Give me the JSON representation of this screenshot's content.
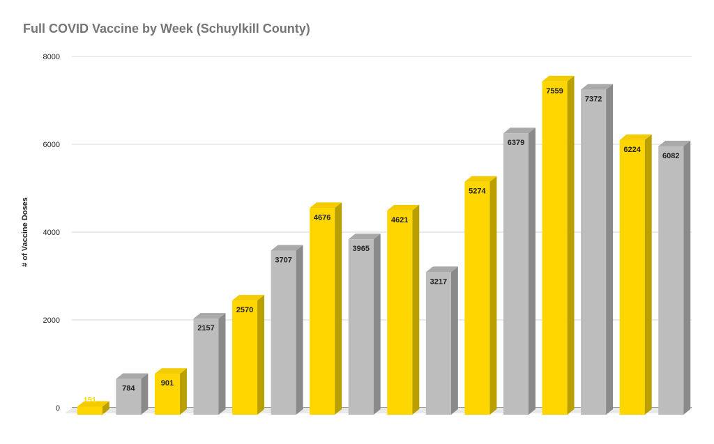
{
  "chart_data": {
    "type": "bar",
    "title": "Full COVID Vaccine by Week (Schuylkill County)",
    "xlabel": "",
    "ylabel": "# of Vaccine Doses",
    "ylim": [
      0,
      8000
    ],
    "yticks": [
      0,
      2000,
      4000,
      6000,
      8000
    ],
    "grid": true,
    "legend": "none",
    "style": "3d",
    "values": [
      151,
      784,
      901,
      2157,
      2570,
      3707,
      4676,
      3965,
      4621,
      3217,
      5274,
      6379,
      7559,
      7372,
      6224,
      6082
    ],
    "colors": {
      "yellow": "#FFD600",
      "yellow_side": "#B9A000",
      "yellow_top": "#F2CC00",
      "gray": "#BDBDBD",
      "gray_side": "#8A8A8A",
      "gray_top": "#A9A9A9",
      "label_dark": "#222222",
      "label_highlight": "#FFD600"
    }
  }
}
